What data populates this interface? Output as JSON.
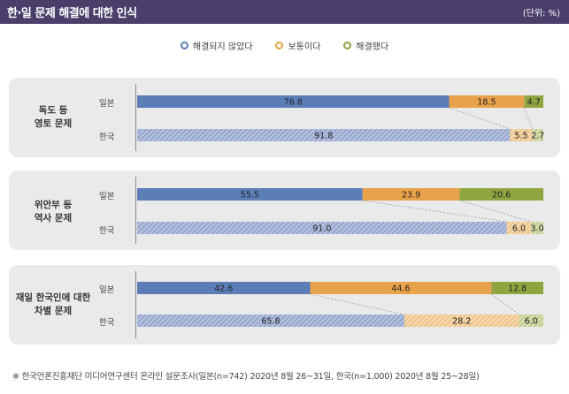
{
  "header": {
    "title": "한·일 문제 해결에 대한 인식",
    "unit": "(단위: %)"
  },
  "colors": {
    "header_bg": "#4a3f6b",
    "unresolved": "#5b7db8",
    "neutral": "#e8a24a",
    "resolved": "#8fa640",
    "unresolved_korea": "#9aa9cf",
    "neutral_korea": "#f2c58a",
    "resolved_korea": "#c7d08f"
  },
  "chart_data": {
    "type": "bar",
    "orientation": "horizontal",
    "stacked": true,
    "xlim": [
      0,
      100
    ],
    "legend": {
      "placement": "top-center",
      "entries": [
        "해결되지 않았다",
        "보통이다",
        "해결됐다"
      ]
    },
    "groups": [
      {
        "label_lines": [
          "독도 등",
          "영토 문제"
        ],
        "rows": [
          {
            "country": "일본",
            "values": [
              76.8,
              18.5,
              4.7
            ]
          },
          {
            "country": "한국",
            "values": [
              91.8,
              5.5,
              2.7
            ]
          }
        ]
      },
      {
        "label_lines": [
          "위안부 등",
          "역사 문제"
        ],
        "rows": [
          {
            "country": "일본",
            "values": [
              55.5,
              23.9,
              20.6
            ]
          },
          {
            "country": "한국",
            "values": [
              91.0,
              6.0,
              3.0
            ]
          }
        ]
      },
      {
        "label_lines": [
          "재일 한국인에 대한",
          "차별 문제"
        ],
        "rows": [
          {
            "country": "일본",
            "values": [
              42.6,
              44.6,
              12.8
            ]
          },
          {
            "country": "한국",
            "values": [
              65.8,
              28.2,
              6.0
            ]
          }
        ]
      }
    ]
  },
  "footnote": "※ 한국언론진흥재단 미디어연구센터 온라인 설문조사(일본(n=742) 2020년 8월 26~31일, 한국(n=1,000) 2020년 8월 25~28일)"
}
